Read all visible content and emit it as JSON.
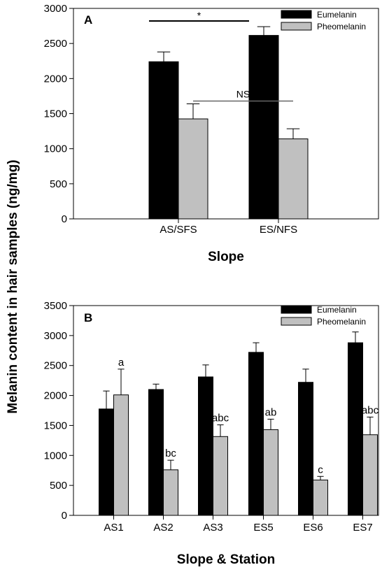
{
  "figure": {
    "shared_ylabel": "Melanin content in hair samples (ng/mg)"
  },
  "chart_data": [
    {
      "type": "bar",
      "panel_label": "A",
      "categories": [
        "AS/SFS",
        "ES/NFS"
      ],
      "series": [
        {
          "name": "Eumelanin",
          "values": [
            2240,
            2615
          ],
          "errors": [
            140,
            125
          ],
          "color": "#000000"
        },
        {
          "name": "Pheomelanin",
          "values": [
            1425,
            1140
          ],
          "errors": [
            215,
            145
          ],
          "color": "#c0c0c0"
        }
      ],
      "ylim": [
        0,
        3000
      ],
      "yticks": [
        0,
        500,
        1000,
        1500,
        2000,
        2500,
        3000
      ],
      "xlabel": "Slope",
      "ylabel": "",
      "legend": "top-right",
      "grid": false,
      "annotations": [
        {
          "text": "*",
          "from": "AS/SFS:Eumelanin",
          "to": "ES/NFS:Eumelanin",
          "y": 2820
        },
        {
          "text": "NS",
          "from": "AS/SFS:Pheomelanin",
          "to": "ES/NFS:Pheomelanin",
          "y": 1680
        }
      ]
    },
    {
      "type": "bar",
      "panel_label": "B",
      "categories": [
        "AS1",
        "AS2",
        "AS3",
        "ES5",
        "ES6",
        "ES7"
      ],
      "series": [
        {
          "name": "Eumelanin",
          "values": [
            1775,
            2100,
            2310,
            2720,
            2220,
            2880
          ],
          "errors": [
            300,
            90,
            200,
            160,
            220,
            180
          ],
          "color": "#000000"
        },
        {
          "name": "Pheomelanin",
          "values": [
            2010,
            760,
            1315,
            1430,
            590,
            1345
          ],
          "errors": [
            430,
            160,
            195,
            175,
            60,
            295
          ],
          "color": "#c0c0c0",
          "labels": [
            "a",
            "bc",
            "abc",
            "ab",
            "c",
            "abc"
          ]
        }
      ],
      "ylim": [
        0,
        3500
      ],
      "yticks": [
        0,
        500,
        1000,
        1500,
        2000,
        2500,
        3000,
        3500
      ],
      "xlabel": "Slope & Station",
      "ylabel": "",
      "legend": "top-right",
      "grid": false
    }
  ]
}
